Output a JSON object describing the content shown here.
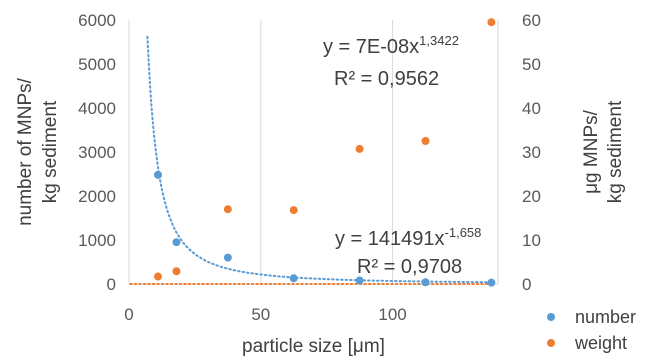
{
  "chart_data": {
    "type": "scatter",
    "xlabel": "particle size [μm]",
    "ylabel_left": [
      "number of MNPs/",
      "kg sediment"
    ],
    "ylabel_right": [
      "μg MNPs/",
      "kg sediment"
    ],
    "xlim": [
      0,
      140
    ],
    "ylim_left": [
      0,
      6000
    ],
    "ylim_right": [
      0,
      60
    ],
    "x_ticks": [
      "0",
      "50",
      "100"
    ],
    "x_tick_values": [
      0,
      50,
      100
    ],
    "y_left_ticks": [
      "0",
      "1000",
      "2000",
      "3000",
      "4000",
      "5000",
      "6000"
    ],
    "y_left_tick_values": [
      0,
      1000,
      2000,
      3000,
      4000,
      5000,
      6000
    ],
    "y_right_ticks": [
      "0",
      "10",
      "20",
      "30",
      "40",
      "50",
      "60"
    ],
    "y_right_tick_values": [
      0,
      10,
      20,
      30,
      40,
      50,
      60
    ],
    "grid": "vertical",
    "legend_position": "bottom-right",
    "series": [
      {
        "name": "number",
        "axis": "left",
        "color": "#5b9bd5",
        "x": [
          11,
          18,
          37.5,
          62.5,
          87.5,
          112.5,
          137.5
        ],
        "y": [
          2480,
          950,
          600,
          130,
          80,
          40,
          30
        ],
        "trendline": {
          "type": "power",
          "coef": 141491,
          "exp": -1.658,
          "equation_base": "y = 141491x",
          "equation_exp": "-1,658",
          "r2_label": "R² = 0,9708"
        }
      },
      {
        "name": "weight",
        "axis": "right",
        "color": "#ed7d31",
        "x": [
          11,
          18,
          37.5,
          62.5,
          87.5,
          112.5,
          137.5
        ],
        "y": [
          1.7,
          2.9,
          17,
          16.8,
          30.7,
          32.5,
          59.5
        ],
        "trendline": {
          "type": "power",
          "coef": 7e-08,
          "exp": 1.3422,
          "equation_base": "y = 7E-08x",
          "equation_exp": "1,3422",
          "r2_label": "R² = 0,9562"
        }
      }
    ]
  }
}
